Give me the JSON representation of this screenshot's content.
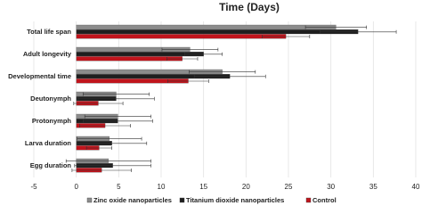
{
  "chart_data": {
    "type": "hbar",
    "title": "Time (Days)",
    "categories": [
      "Total life span",
      "Adult longevity",
      "Developmental time",
      "Deutonymph",
      "Protonymph",
      "Larva duration",
      "Egg duration"
    ],
    "series": [
      {
        "name": "Zinc oxide nanoparticles",
        "color": "#8c8c8c",
        "values": [
          30.6,
          13.4,
          17.2,
          4.7,
          4.9,
          3.9,
          3.8
        ],
        "errors": [
          3.6,
          3.3,
          3.9,
          3.9,
          3.9,
          3.8,
          5.0
        ]
      },
      {
        "name": "Titanium dioxide nanoparticles",
        "color": "#1e1e1e",
        "values": [
          33.2,
          15.0,
          18.1,
          4.7,
          4.9,
          4.2,
          4.3
        ],
        "errors": [
          4.5,
          2.2,
          4.2,
          4.5,
          4.1,
          4.1,
          4.5
        ]
      },
      {
        "name": "Control",
        "color": "#c0141c",
        "values": [
          24.7,
          12.5,
          13.2,
          2.6,
          3.4,
          2.7,
          3.0
        ],
        "errors": [
          2.8,
          1.8,
          2.4,
          2.9,
          3.0,
          1.5,
          3.5
        ]
      }
    ],
    "xlim": [
      -5,
      40
    ],
    "xticks": [
      -5,
      0,
      5,
      10,
      15,
      20,
      25,
      30,
      35,
      40
    ],
    "grid": true
  }
}
